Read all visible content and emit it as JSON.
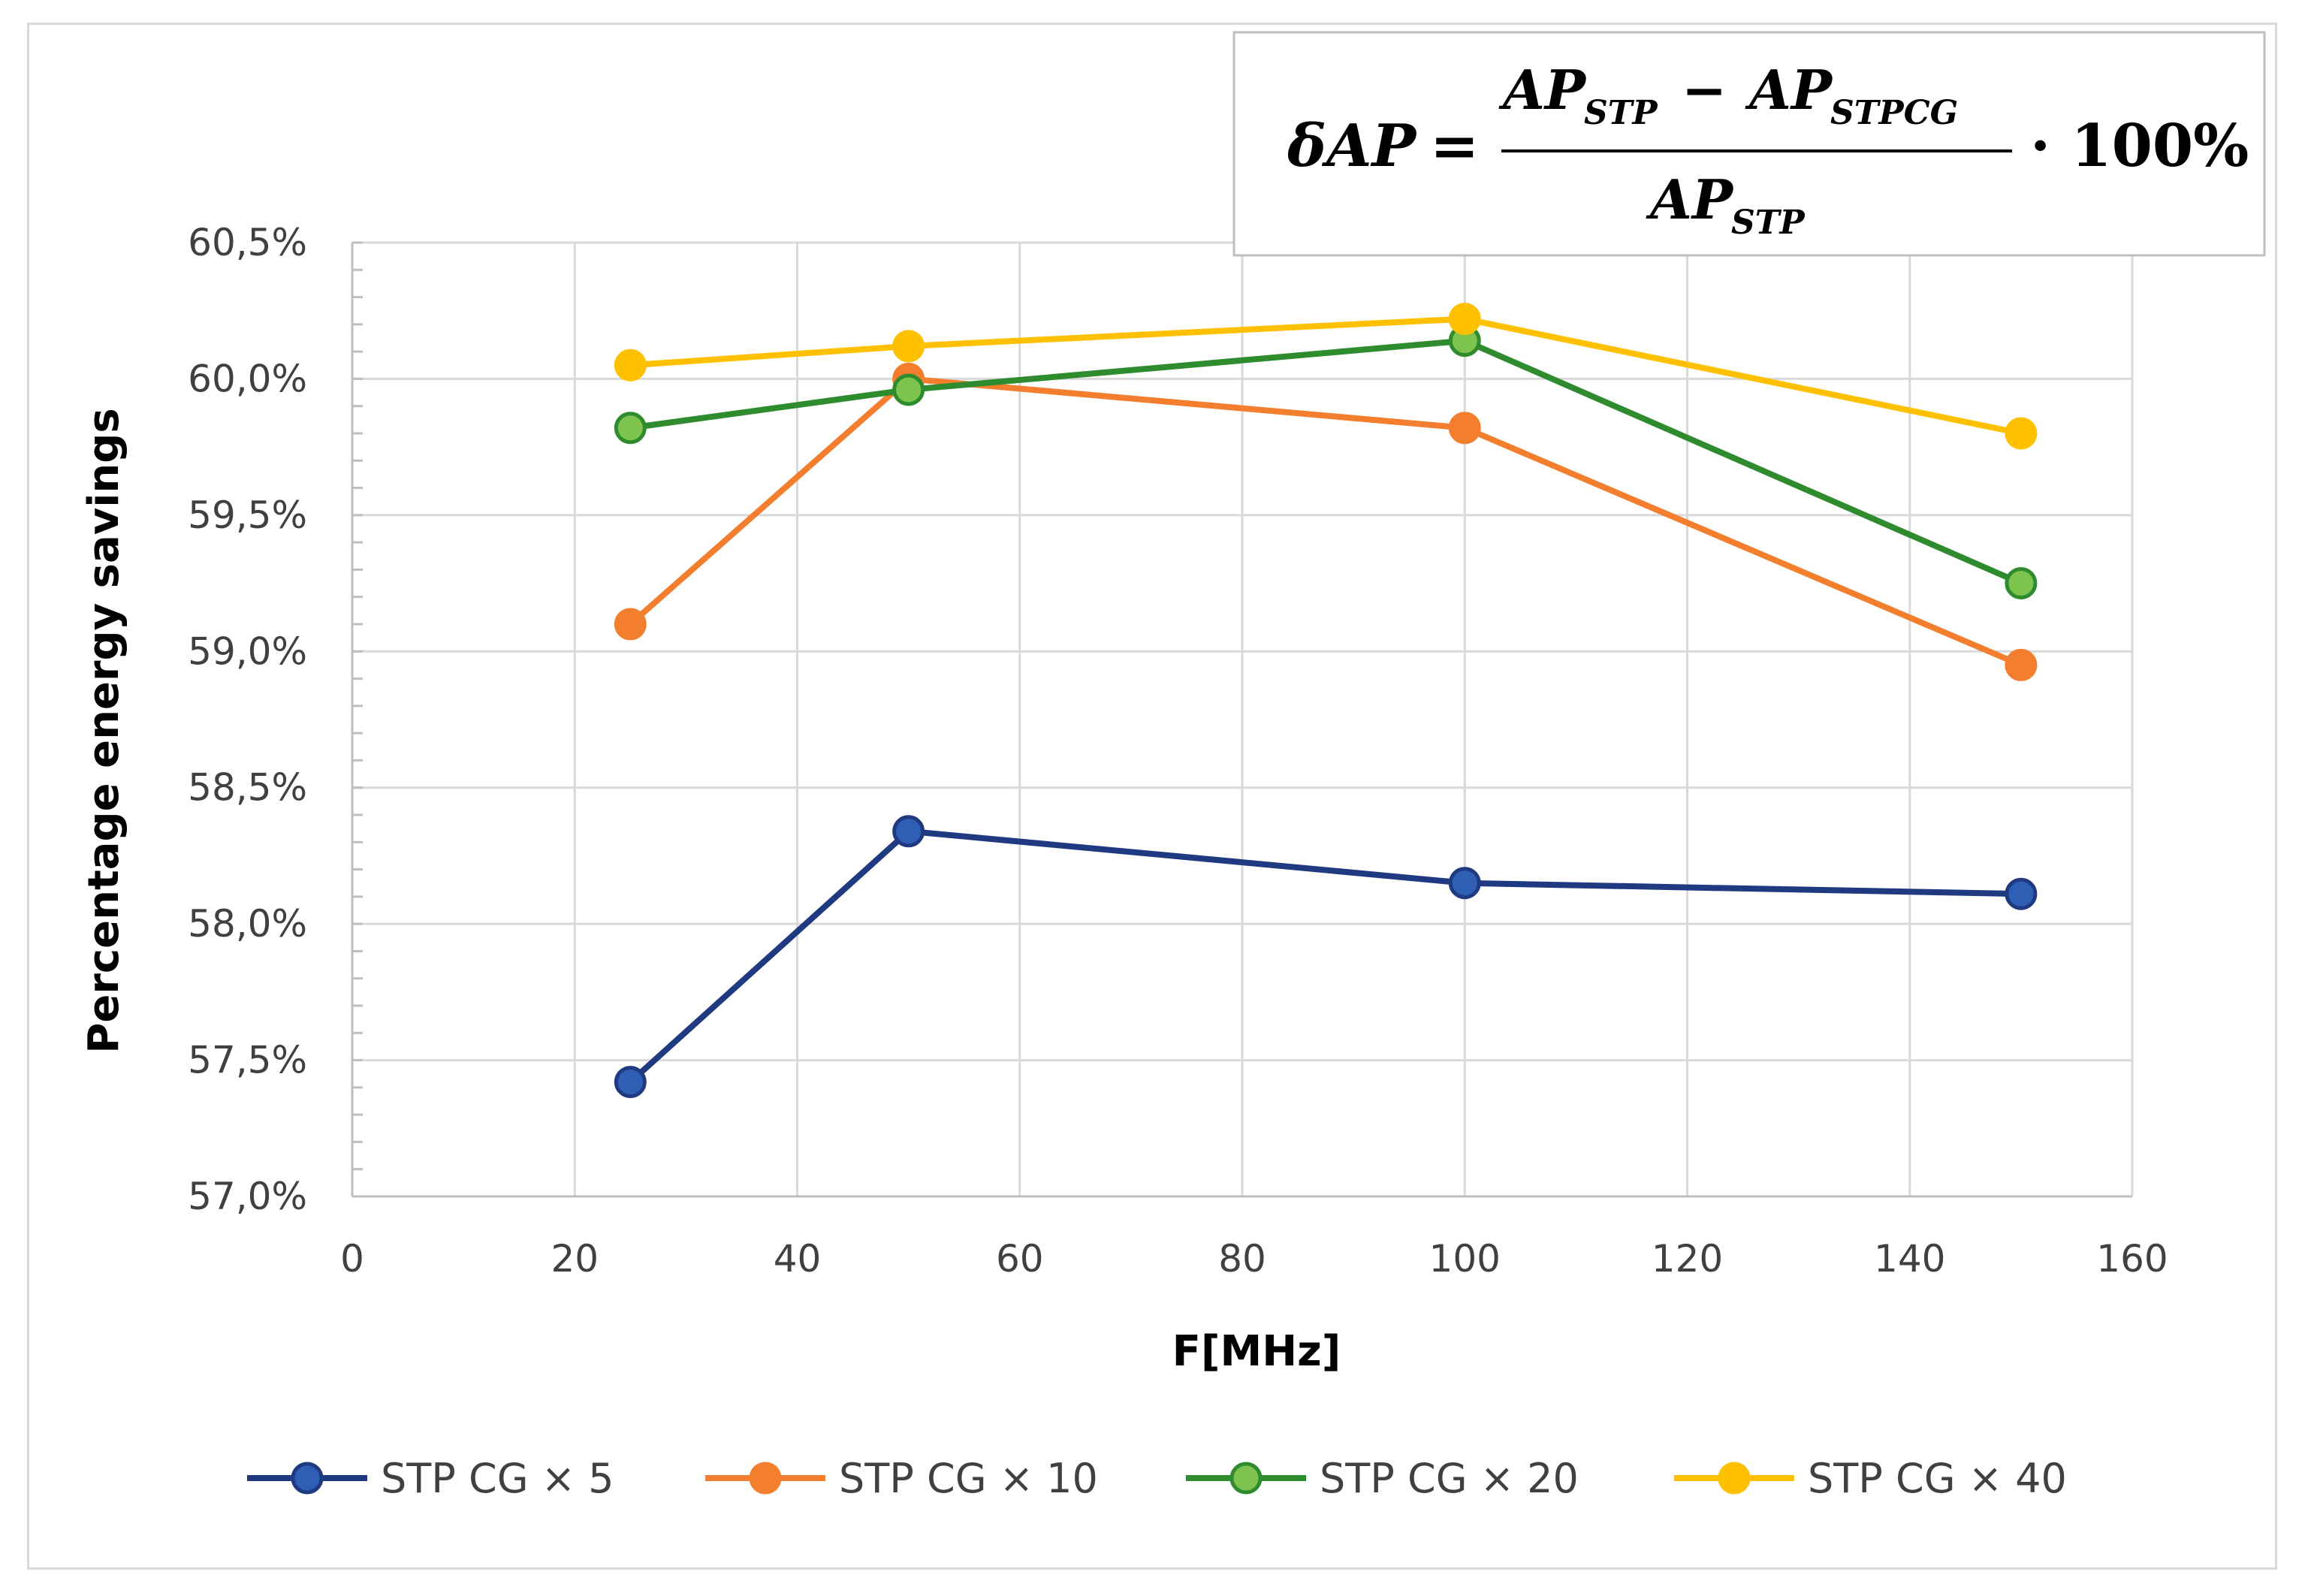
{
  "chart_data": {
    "type": "line",
    "title": "",
    "xlabel": "F[MHz]",
    "ylabel": "Percentage energy savings",
    "xlim": [
      0,
      160
    ],
    "ylim": [
      57.0,
      60.5
    ],
    "x_ticks": [
      0,
      20,
      40,
      60,
      80,
      100,
      120,
      140,
      160
    ],
    "x_tick_labels": [
      "0",
      "20",
      "40",
      "60",
      "80",
      "100",
      "120",
      "140",
      "160"
    ],
    "y_ticks": [
      57.0,
      57.5,
      58.0,
      58.5,
      59.0,
      59.5,
      60.0,
      60.5
    ],
    "y_tick_labels": [
      "57,0%",
      "57,5%",
      "58,0%",
      "58,5%",
      "59,0%",
      "59,5%",
      "60,0%",
      "60,5%"
    ],
    "grid": true,
    "legend_position": "bottom",
    "x": [
      25,
      50,
      100,
      150
    ],
    "series": [
      {
        "name": "STP CG × 5",
        "values": [
          57.42,
          58.34,
          58.15,
          58.11
        ],
        "line_color": "#1f3a80",
        "marker_fill": "#2e5fb5",
        "marker_edge": "#1f3a80"
      },
      {
        "name": "STP CG × 10",
        "values": [
          59.1,
          60.0,
          59.82,
          58.95
        ],
        "line_color": "#f37f2e",
        "marker_fill": "#f37f2e",
        "marker_edge": "#f37f2e"
      },
      {
        "name": "STP CG × 20",
        "values": [
          59.82,
          59.96,
          60.14,
          59.25
        ],
        "line_color": "#2e8b2e",
        "marker_fill": "#7cc44d",
        "marker_edge": "#2e8b2e"
      },
      {
        "name": "STP CG × 40",
        "values": [
          60.05,
          60.12,
          60.22,
          59.8
        ],
        "line_color": "#ffc000",
        "marker_fill": "#ffc000",
        "marker_edge": "#ffc000"
      }
    ],
    "annotation": {
      "lhs": "δAP",
      "equals": "=",
      "numerator_a": "AP",
      "numerator_a_sub": "STP",
      "minus": "−",
      "numerator_b": "AP",
      "numerator_b_sub": "STPCG",
      "denominator": "AP",
      "denominator_sub": "STP",
      "multiplier": "· 100%"
    }
  }
}
